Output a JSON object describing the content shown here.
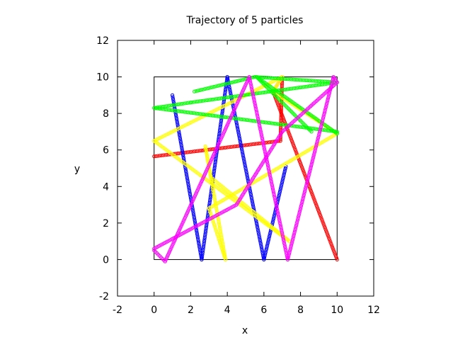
{
  "chart_data": {
    "type": "scatter",
    "title": "Trajectory of 5 particles",
    "xlabel": "x",
    "ylabel": "y",
    "xlim": [
      -2,
      12
    ],
    "ylim": [
      -2,
      12
    ],
    "xticks": [
      "-2",
      "0",
      "2",
      "4",
      "6",
      "8",
      "10",
      "12"
    ],
    "yticks": [
      "-2",
      "0",
      "2",
      "4",
      "6",
      "8",
      "10",
      "12"
    ],
    "grid": false,
    "legend": false,
    "marker": "hollow-circle",
    "box": {
      "x": [
        0,
        10
      ],
      "y": [
        0,
        10
      ]
    },
    "series": [
      {
        "color": "#ff0000",
        "path": [
          [
            0.0,
            5.65
          ],
          [
            6.9,
            6.5
          ],
          [
            7.0,
            10.0
          ],
          [
            6.5,
            9.2
          ],
          [
            10.0,
            0.0
          ]
        ]
      },
      {
        "color": "#0000ff",
        "path": [
          [
            1.0,
            9.0
          ],
          [
            2.6,
            0.0
          ],
          [
            4.0,
            10.0
          ],
          [
            6.0,
            0.0
          ],
          [
            7.2,
            5.1
          ]
        ]
      },
      {
        "color": "#ffff00",
        "path": [
          [
            0.0,
            6.5
          ],
          [
            7.0,
            10.0
          ],
          [
            6.5,
            9.2
          ],
          [
            10.0,
            6.9
          ],
          [
            3.0,
            2.8
          ],
          [
            3.9,
            0.0
          ],
          [
            2.8,
            6.2
          ],
          [
            3.1,
            4.5
          ],
          [
            7.4,
            1.0
          ],
          [
            0.0,
            6.5
          ]
        ]
      },
      {
        "color": "#00ff00",
        "path": [
          [
            2.2,
            9.2
          ],
          [
            5.5,
            10.0
          ],
          [
            10.0,
            9.7
          ],
          [
            2.0,
            8.6
          ],
          [
            0.0,
            8.3
          ],
          [
            10.0,
            7.0
          ],
          [
            10.0,
            6.9
          ],
          [
            5.6,
            10.0
          ],
          [
            8.6,
            7.0
          ]
        ]
      },
      {
        "color": "#ff00ff",
        "path": [
          [
            0.0,
            0.5
          ],
          [
            0.6,
            -0.1
          ],
          [
            5.2,
            10.0
          ],
          [
            7.3,
            0.0
          ],
          [
            9.8,
            10.0
          ],
          [
            10.0,
            9.7
          ],
          [
            7.0,
            7.0
          ],
          [
            4.5,
            3.0
          ],
          [
            0.0,
            0.6
          ]
        ]
      }
    ]
  }
}
